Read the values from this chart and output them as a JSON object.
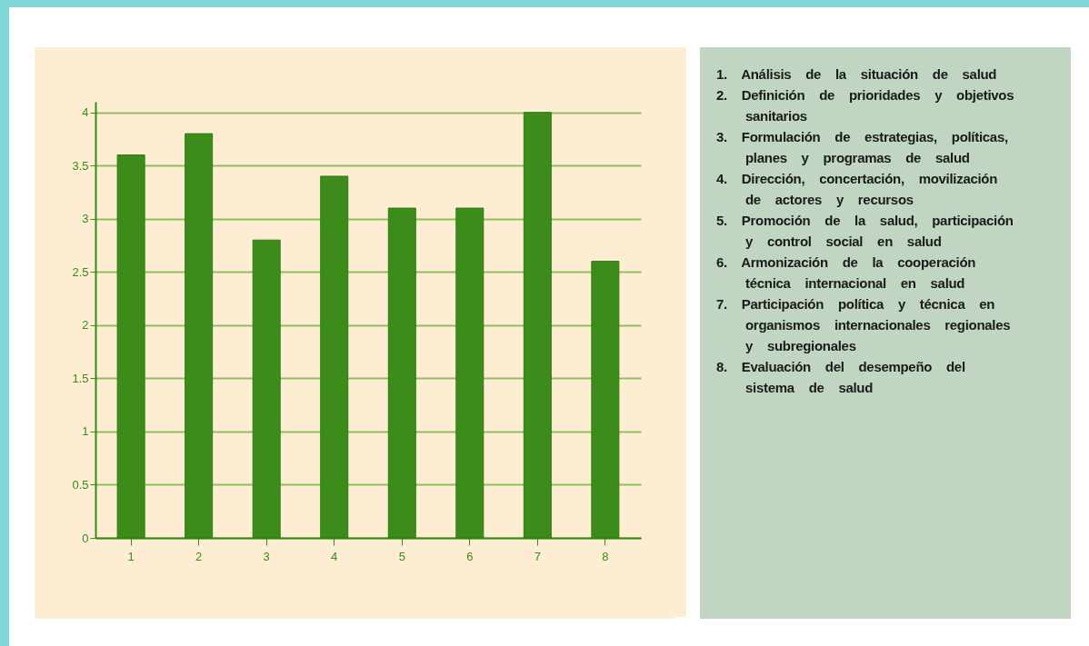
{
  "chart_data": {
    "type": "bar",
    "categories": [
      "1",
      "2",
      "3",
      "4",
      "5",
      "6",
      "7",
      "8"
    ],
    "values": [
      3.6,
      3.8,
      2.8,
      3.4,
      3.1,
      3.1,
      4.0,
      2.6
    ],
    "color": "#3d8c1b",
    "ylim": [
      0,
      4.1
    ],
    "yticks": [
      0,
      0.5,
      1,
      1.5,
      2,
      2.5,
      3,
      3.5,
      4
    ],
    "grid": "y",
    "annotations": [
      "1. Análisis de la situación de salud",
      "2. Definición de prioridades y objetivos sanitarios",
      "3. Formulación de estrategias, políticas, planes y programas de salud",
      "4. Dirección, concertación, movilización de actores y recursos",
      "5. Promoción de la salud, participación y control social en salud",
      "6. Armonización de la cooperación técnica internacional en salud",
      "7. Participación política y técnica en organismos internacionales regionales y subregionales",
      "8. Evaluación del desempeño del sistema de salud"
    ]
  }
}
